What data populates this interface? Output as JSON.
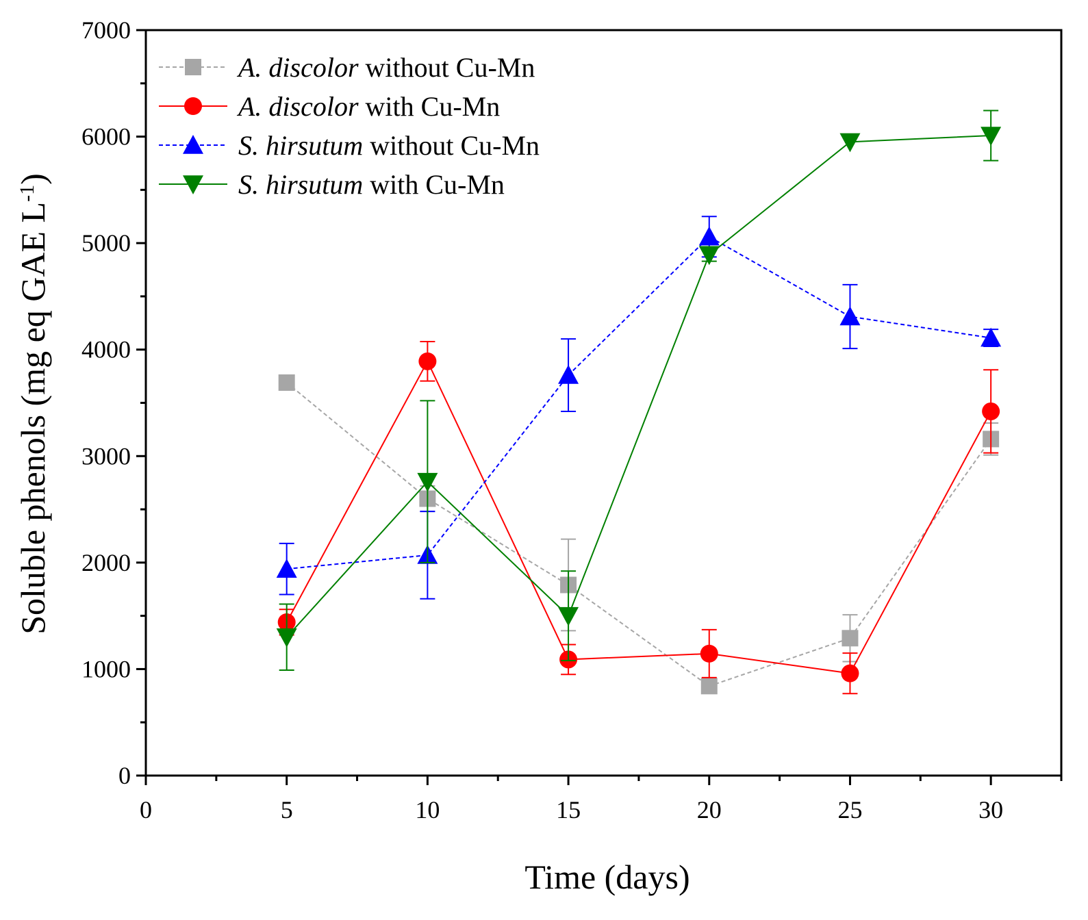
{
  "chart_data": {
    "type": "line",
    "xlabel": "Time (days)",
    "ylabel": "Soluble phenols (mg eq GAE L",
    "ylabel_sup": "-1",
    "ylabel_close": ")",
    "xlim": [
      0,
      32.5
    ],
    "ylim": [
      0,
      7000
    ],
    "xticks": [
      0,
      5,
      10,
      15,
      20,
      25,
      30
    ],
    "yticks": [
      0,
      1000,
      2000,
      3000,
      4000,
      5000,
      6000,
      7000
    ],
    "grid": false,
    "legend_position": "top-left",
    "x": [
      5,
      10,
      15,
      20,
      25,
      30
    ],
    "series": [
      {
        "species": "A. discolor",
        "condition": "without Cu-Mn",
        "color": "#a6a6a6",
        "marker": "square",
        "dashed": true,
        "values": [
          3690,
          2600,
          1790,
          840,
          1290,
          3160
        ],
        "errors": [
          0,
          120,
          430,
          0,
          220,
          150
        ]
      },
      {
        "species": "A. discolor",
        "condition": "with Cu-Mn",
        "color": "#ff0000",
        "marker": "circle",
        "dashed": false,
        "values": [
          1440,
          3890,
          1090,
          1145,
          960,
          3420
        ],
        "errors": [
          120,
          185,
          140,
          225,
          190,
          390
        ]
      },
      {
        "species": "S. hirsutum",
        "condition": "without Cu-Mn",
        "color": "#0000ff",
        "marker": "triangle-up",
        "dashed": true,
        "values": [
          1940,
          2070,
          3760,
          5060,
          4310,
          4110
        ],
        "errors": [
          240,
          410,
          340,
          190,
          300,
          80
        ]
      },
      {
        "species": "S. hirsutum",
        "condition": "with Cu-Mn",
        "color": "#008000",
        "marker": "triangle-down",
        "dashed": false,
        "values": [
          1300,
          2760,
          1500,
          4890,
          5950,
          6010
        ],
        "errors": [
          310,
          760,
          420,
          60,
          0,
          235
        ]
      }
    ]
  }
}
